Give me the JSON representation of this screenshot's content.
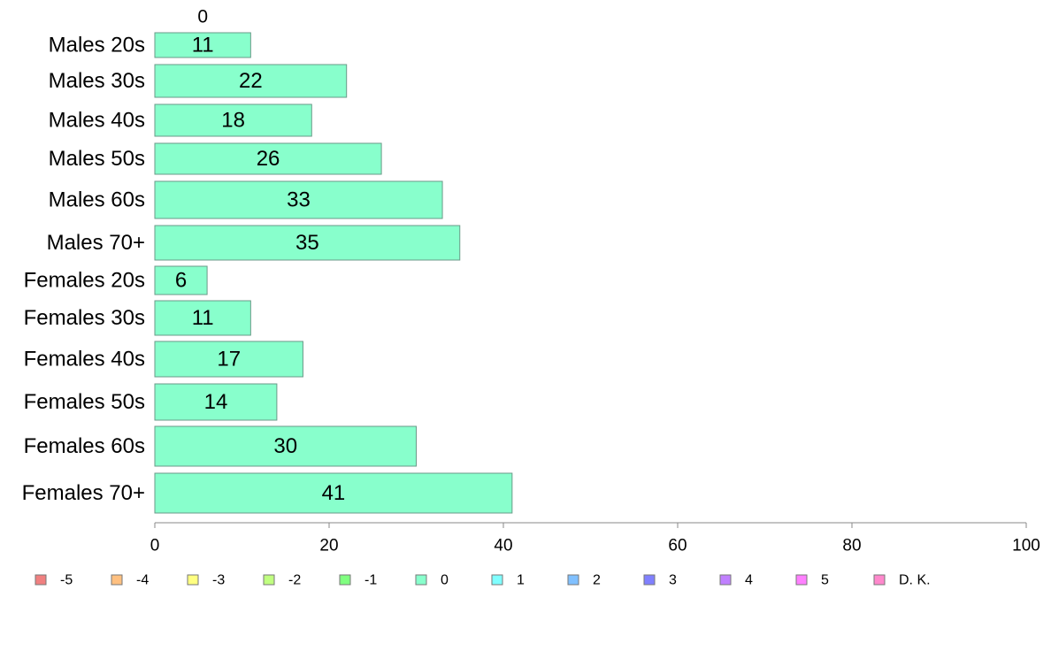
{
  "chart_data": {
    "type": "bar",
    "orientation": "horizontal",
    "categories": [
      "Males 20s",
      "Males 30s",
      "Males 40s",
      "Males 50s",
      "Males 60s",
      "Males 70+",
      "Females 20s",
      "Females 30s",
      "Females 40s",
      "Females 50s",
      "Females 60s",
      "Females 70+"
    ],
    "series": [
      {
        "name": "0",
        "color": "#88ffcc",
        "values": [
          11,
          22,
          18,
          26,
          33,
          35,
          6,
          11,
          17,
          14,
          30,
          41
        ]
      }
    ],
    "xlim": [
      0,
      100
    ],
    "xticks": [
      0,
      20,
      40,
      60,
      80,
      100
    ],
    "title": "",
    "xlabel": "",
    "ylabel": "",
    "legend": {
      "placement": "bottom",
      "items": [
        {
          "label": "-5",
          "color": "#f08080"
        },
        {
          "label": "-4",
          "color": "#ffc080"
        },
        {
          "label": "-3",
          "color": "#ffff80"
        },
        {
          "label": "-2",
          "color": "#c0ff80"
        },
        {
          "label": "-1",
          "color": "#80ff80"
        },
        {
          "label": "0",
          "color": "#88ffcc"
        },
        {
          "label": "1",
          "color": "#80ffff"
        },
        {
          "label": "2",
          "color": "#80c0ff"
        },
        {
          "label": "3",
          "color": "#8080ff"
        },
        {
          "label": "4",
          "color": "#c080ff"
        },
        {
          "label": "5",
          "color": "#ff80ff"
        },
        {
          "label": "D. K.",
          "color": "#ff88cc"
        }
      ]
    },
    "grid": false,
    "bar_border_color": "#6a9a88",
    "axis_color": "#888888"
  }
}
